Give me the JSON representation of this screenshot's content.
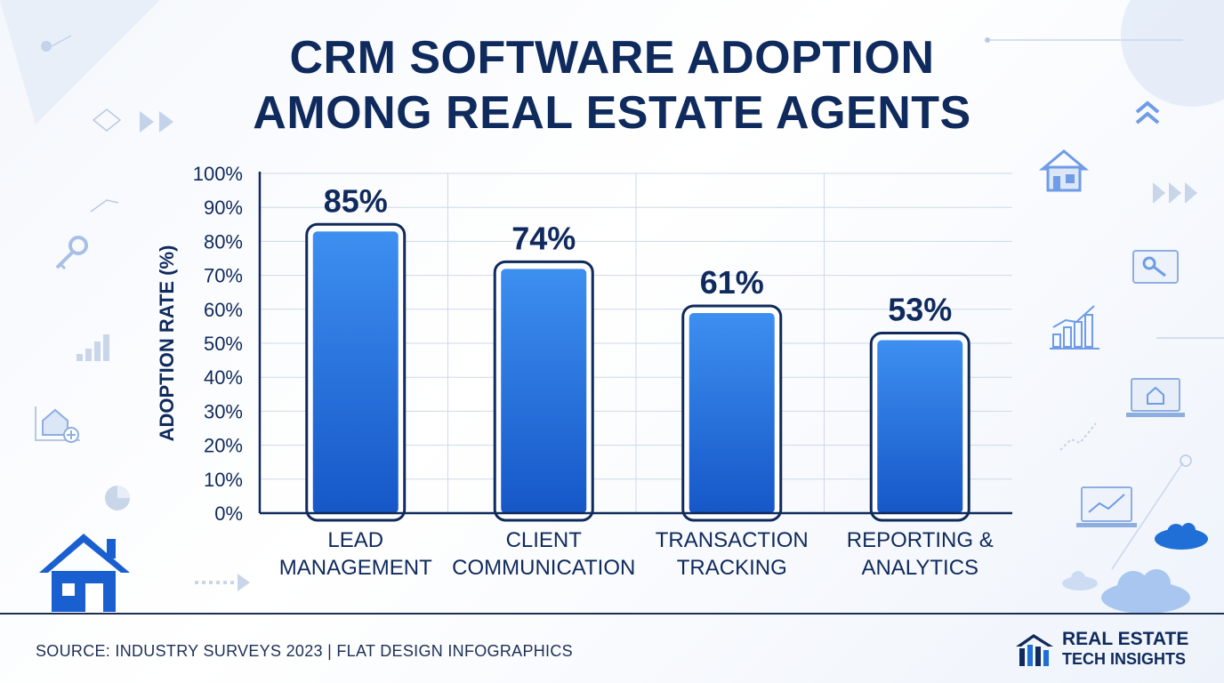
{
  "title_line1": "CRM SOFTWARE ADOPTION",
  "title_line2": "AMONG REAL ESTATE AGENTS",
  "source": "SOURCE: INDUSTRY SURVEYS 2023 | FLAT DESIGN INFOGRAPHICS",
  "brand": {
    "line1": "REAL ESTATE",
    "line2": "TECH INSIGHTS"
  },
  "colors": {
    "bar_top": "#3d8ff0",
    "bar_bottom": "#1657c8",
    "outline": "#0f2a5c",
    "text": "#0f2a5c"
  },
  "icons": [
    "house-icon",
    "key-icon",
    "bar-chart-icon",
    "laptop-icon",
    "cloud-icon",
    "pie-chart-icon",
    "arrow-right-icon",
    "chevron-up-icon",
    "brand-logo-icon"
  ],
  "chart_data": {
    "type": "bar",
    "title": "",
    "ylabel": "ADOPTION RATE (%)",
    "xlabel": "",
    "ylim": [
      0,
      100
    ],
    "yticks": [
      "0%",
      "10%",
      "20%",
      "30%",
      "40%",
      "50%",
      "60%",
      "70%",
      "80%",
      "90%",
      "100%"
    ],
    "categories": [
      [
        "LEAD",
        "MANAGEMENT"
      ],
      [
        "CLIENT",
        "COMMUNICATION"
      ],
      [
        "TRANSACTION",
        "TRACKING"
      ],
      [
        "REPORTING &",
        "ANALYTICS"
      ]
    ],
    "values": [
      85,
      74,
      61,
      53
    ],
    "data_labels": [
      "85%",
      "74%",
      "61%",
      "53%"
    ],
    "grid": true
  }
}
